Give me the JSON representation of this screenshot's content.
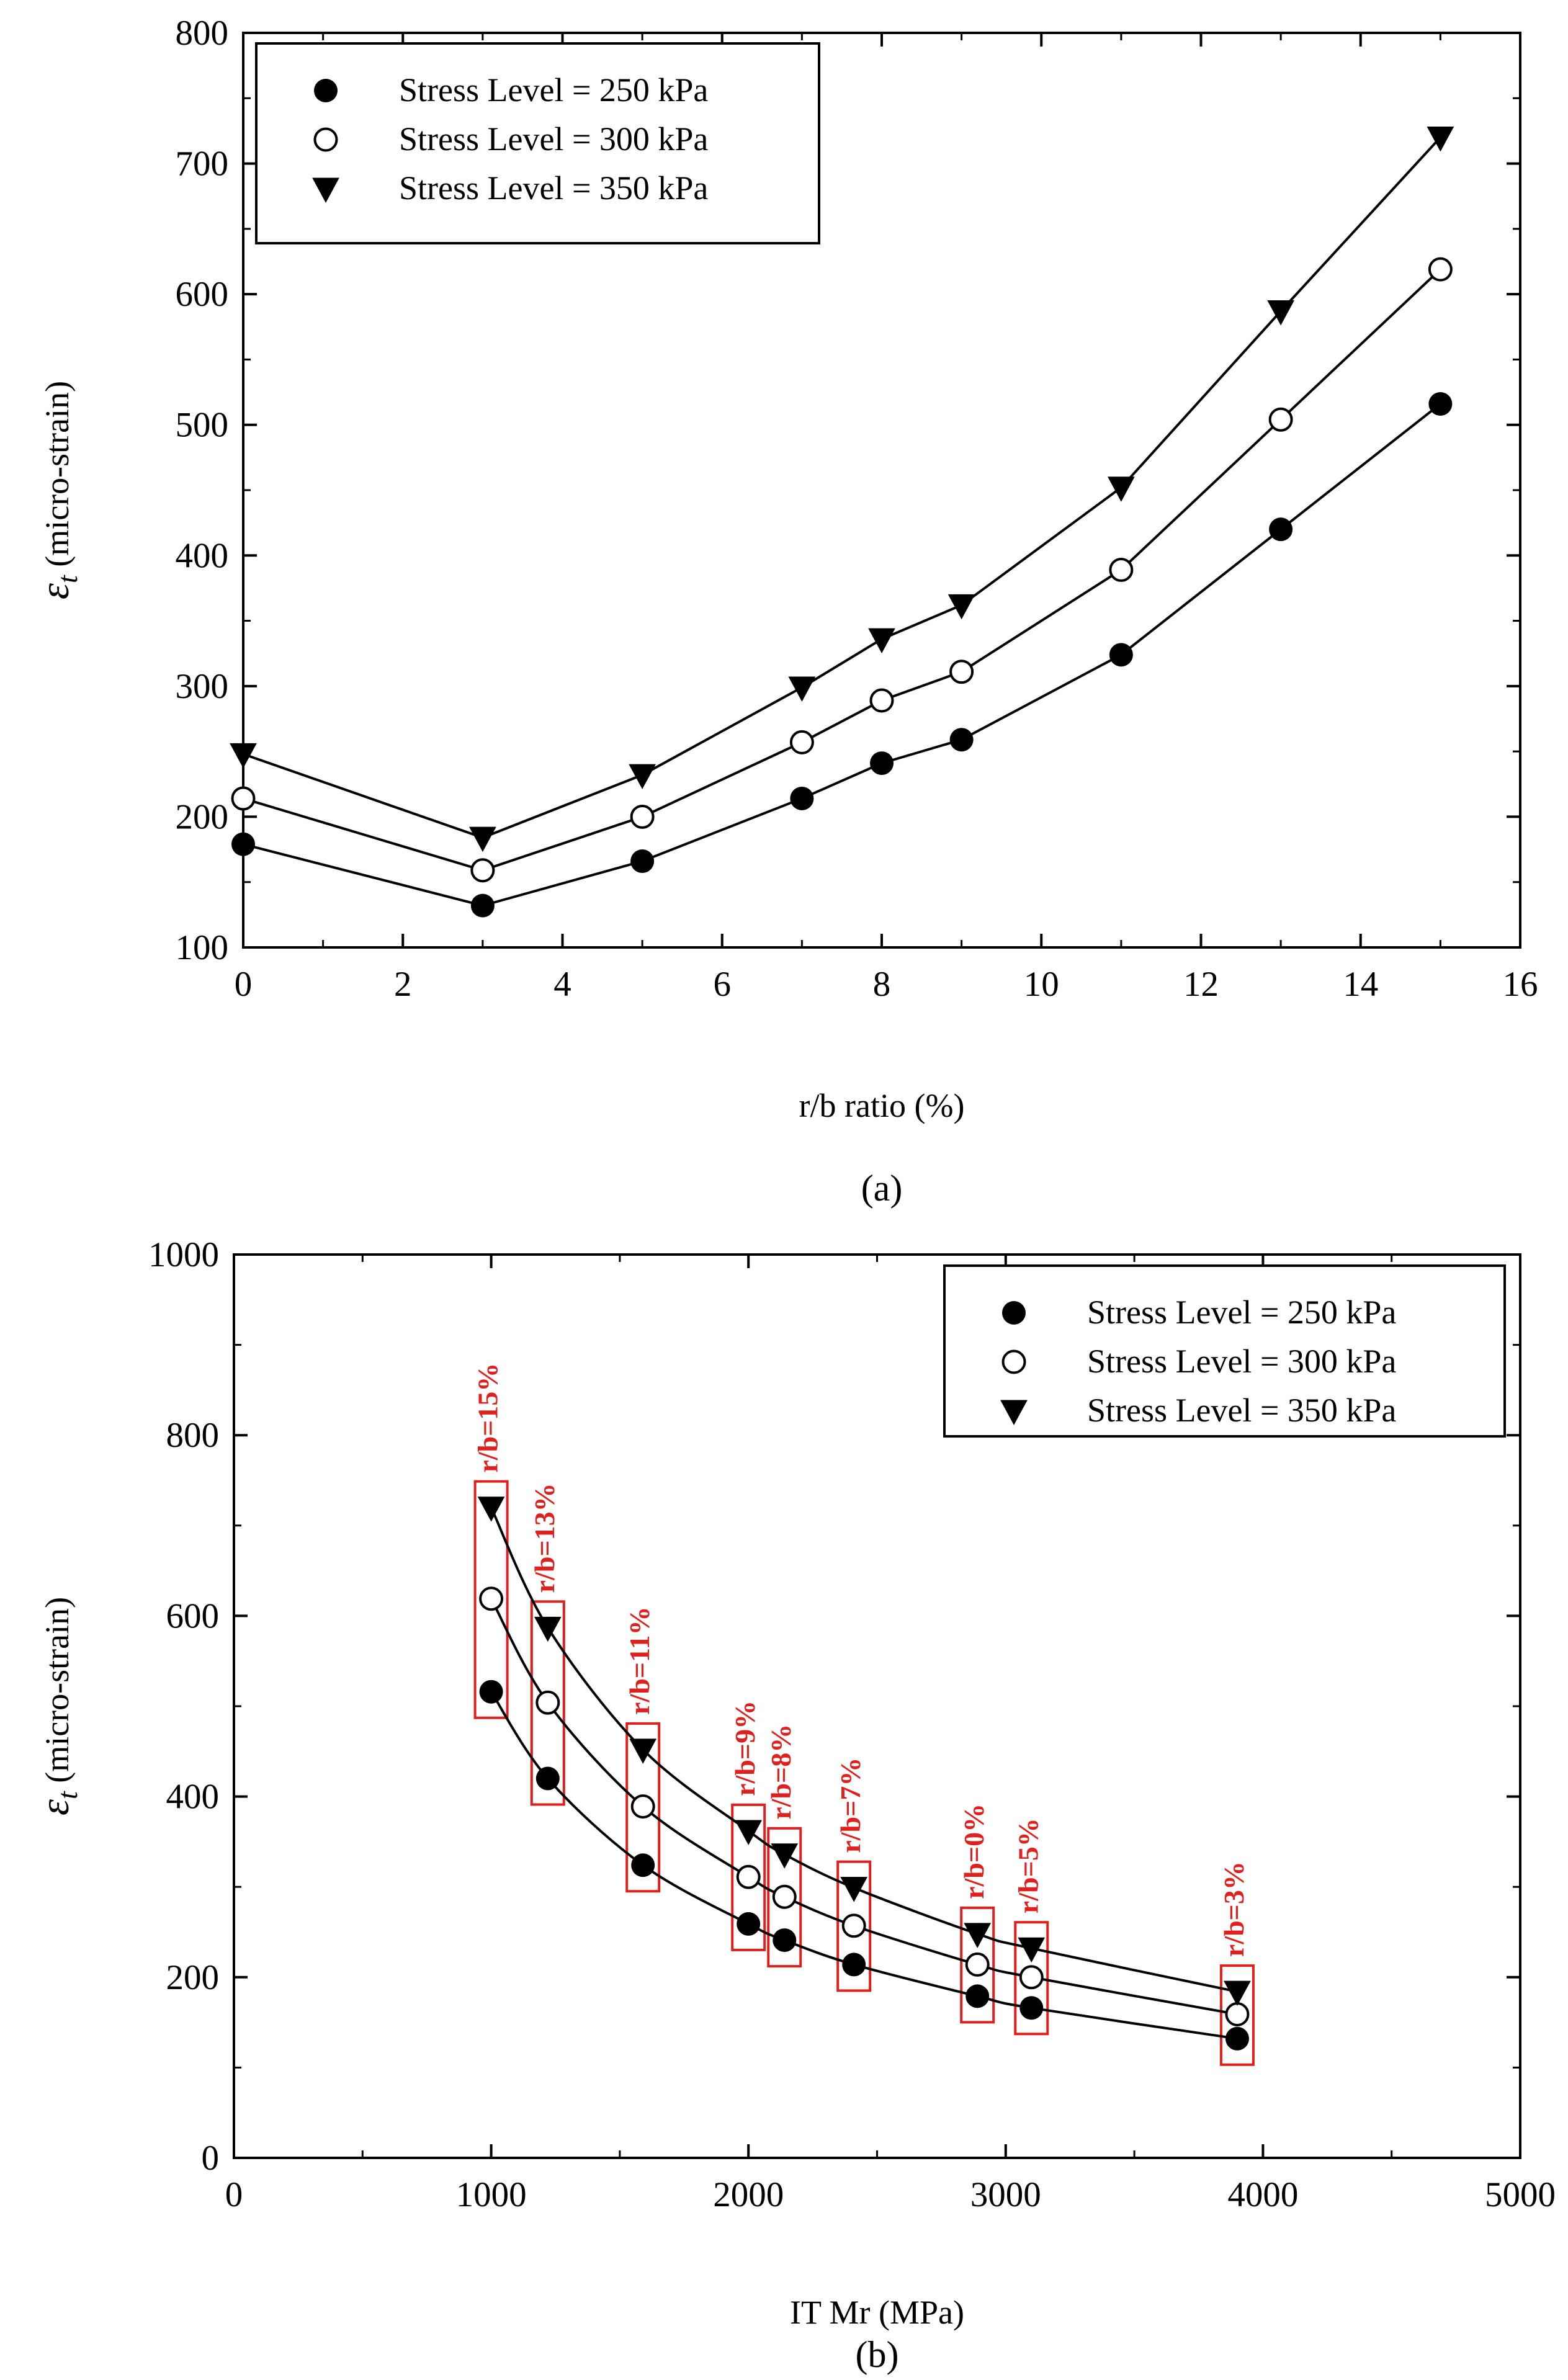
{
  "chart_data": [
    {
      "type": "line",
      "panel_label": "(a)",
      "xlabel": "r/b ratio (%)",
      "ylabel_symbol": "ε",
      "ylabel_sub": "t",
      "ylabel_rest": " (micro-strain)",
      "xlim": [
        0,
        16
      ],
      "ylim": [
        100,
        800
      ],
      "xticks": [
        0,
        2,
        4,
        6,
        8,
        10,
        12,
        14,
        16
      ],
      "yticks": [
        100,
        200,
        300,
        400,
        500,
        600,
        700,
        800
      ],
      "x": [
        0,
        3,
        5,
        7,
        8,
        9,
        11,
        13,
        15
      ],
      "legend_position": "top-left",
      "series": [
        {
          "name": "Stress Level = 250 kPa",
          "marker": "filled-circle",
          "values": [
            179,
            132,
            166,
            214,
            241,
            259,
            324,
            420,
            516
          ]
        },
        {
          "name": "Stress Level = 300 kPa",
          "marker": "open-circle",
          "values": [
            214,
            159,
            200,
            257,
            289,
            311,
            389,
            504,
            619
          ]
        },
        {
          "name": "Stress Level = 350 kPa",
          "marker": "filled-triangle-down",
          "values": [
            248,
            184,
            232,
            299,
            336,
            362,
            452,
            587,
            720
          ]
        }
      ]
    },
    {
      "type": "line",
      "panel_label": "(b)",
      "xlabel": "IT Mr (MPa)",
      "ylabel_symbol": "ε",
      "ylabel_sub": "t",
      "ylabel_rest": " (micro-strain)",
      "xlim": [
        0,
        5000
      ],
      "ylim": [
        0,
        1000
      ],
      "xticks": [
        0,
        1000,
        2000,
        3000,
        4000,
        5000
      ],
      "yticks": [
        0,
        200,
        400,
        600,
        800,
        1000
      ],
      "x": [
        1000,
        1220,
        1590,
        2000,
        2140,
        2410,
        2890,
        3100,
        3900
      ],
      "annotations": [
        "r/b=15%",
        "r/b=13%",
        "r/b=11%",
        "r/b=9%",
        "r/b=8%",
        "r/b=7%",
        "r/b=0%",
        "r/b=5%",
        "r/b=3%"
      ],
      "legend_position": "top-right",
      "series": [
        {
          "name": "Stress Level = 250 kPa",
          "marker": "filled-circle",
          "values": [
            516,
            420,
            324,
            259,
            241,
            214,
            179,
            166,
            132
          ]
        },
        {
          "name": "Stress Level = 300 kPa",
          "marker": "open-circle",
          "values": [
            619,
            504,
            389,
            311,
            289,
            257,
            214,
            200,
            159
          ]
        },
        {
          "name": "Stress Level = 350 kPa",
          "marker": "filled-triangle-down",
          "values": [
            720,
            587,
            452,
            362,
            336,
            299,
            248,
            232,
            184
          ]
        }
      ]
    }
  ]
}
